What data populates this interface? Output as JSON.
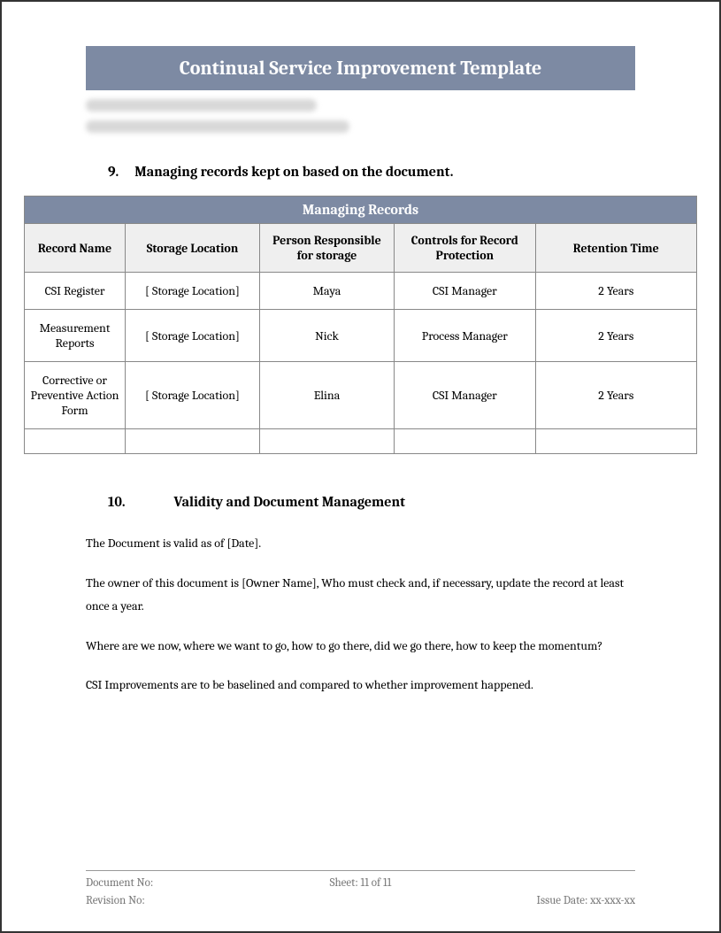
{
  "header": {
    "title": "Continual Service Improvement Template",
    "banner_bg": "#7d8aa3",
    "banner_color": "#ffffff"
  },
  "section9": {
    "number": "9.",
    "title": "Managing records kept on based on the document."
  },
  "table": {
    "title": "Managing Records",
    "title_bg": "#7d8aa3",
    "title_color": "#ffffff",
    "header_bg": "#efefef",
    "border_color": "#888888",
    "columns": [
      "Record Name",
      "Storage Location",
      "Person Responsible for storage",
      "Controls for Record Protection",
      "Retention Time"
    ],
    "rows": [
      [
        "CSI Register",
        "[ Storage Location]",
        "Maya",
        "CSI Manager",
        "2 Years"
      ],
      [
        "Measurement Reports",
        "[ Storage Location]",
        "Nick",
        "Process Manager",
        "2 Years"
      ],
      [
        "Corrective or Preventive Action Form",
        "[ Storage Location]",
        "Elina",
        "CSI Manager",
        "2 Years"
      ]
    ]
  },
  "section10": {
    "number": "10.",
    "title": "Validity and Document Management"
  },
  "body": {
    "p1": "The Document is valid as of [Date].",
    "p2": "The owner of this document is [Owner Name], Who must check and, if necessary, update the record at least once a year.",
    "p3": "Where are we now, where we want to go, how to go there, did we go there, how to keep the momentum?",
    "p4": "CSI Improvements are to be baselined and compared to whether improvement happened."
  },
  "footer": {
    "doc_no_label": "Document No:",
    "sheet": "Sheet: 11 of 11",
    "revision_label": "Revision No:",
    "issue_date": "Issue Date: xx-xxx-xx"
  }
}
